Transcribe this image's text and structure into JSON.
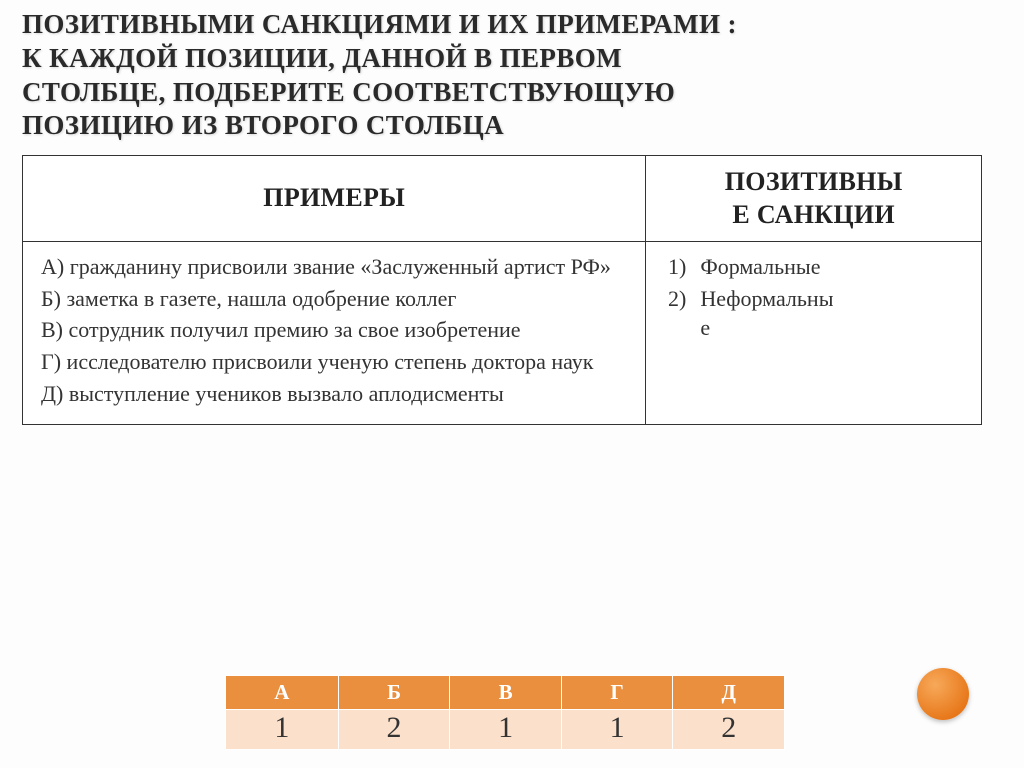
{
  "title_lines": [
    "ПОЗИТИВНЫМИ САНКЦИЯМИ И ИХ ПРИМЕРАМИ :",
    "К КАЖДОЙ ПОЗИЦИИ, ДАННОЙ В ПЕРВОМ",
    "СТОЛБЦЕ, ПОДБЕРИТЕ СООТВЕТСТВУЮЩУЮ",
    "ПОЗИЦИЮ ИЗ ВТОРОГО СТОЛБЦА"
  ],
  "table": {
    "header_examples": "ПРИМЕРЫ",
    "header_sanctions_l1": "ПОЗИТИВНЫ",
    "header_sanctions_l2": "Е САНКЦИИ",
    "examples": [
      "А) гражданину присвоили звание «Заслуженный артист РФ»",
      "Б) заметка в газете, нашла одобрение коллег",
      "В) сотрудник получил премию за свое изобретение",
      "Г) исследователю присвоили ученую степень доктора наук",
      "Д) выступление учеников вызвало аплодисменты"
    ],
    "sanctions": [
      {
        "num": "1)",
        "label": "Формальные"
      },
      {
        "num": "2)",
        "label_l1": "Неформальны",
        "label_l2": "е"
      }
    ]
  },
  "answer": {
    "letters": [
      "А",
      "Б",
      "В",
      "Г",
      "Д"
    ],
    "values": [
      "1",
      "2",
      "1",
      "1",
      "2"
    ],
    "header_bg": "#e98f3e",
    "header_fg": "#ffffff",
    "cell_bg": "#fbe0cb",
    "cell_fg": "#333333"
  },
  "colors": {
    "title_fg": "#2a2a2a",
    "border": "#333333",
    "dot_light": "#f7a95a",
    "dot_dark": "#e77618"
  }
}
